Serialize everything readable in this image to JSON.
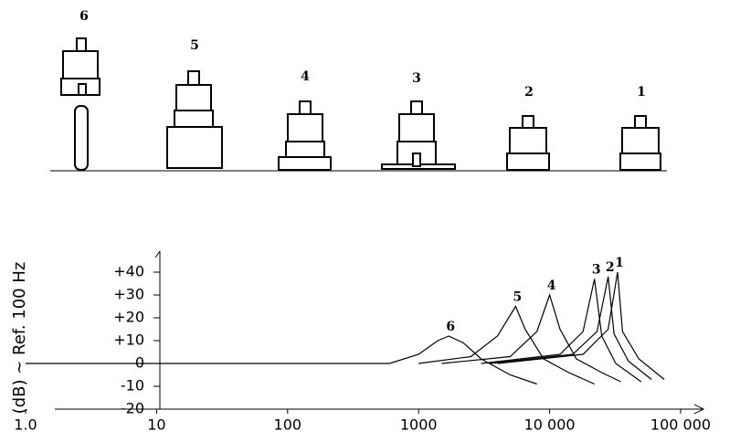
{
  "mounts": {
    "labels": [
      "6",
      "5",
      "4",
      "3",
      "2",
      "1"
    ]
  },
  "chart_data": {
    "type": "line",
    "y_label": "(dB) ~ Ref. 100 Hz",
    "xscale": "log",
    "xlim": [
      1,
      100000
    ],
    "ylim": [
      -20,
      45
    ],
    "xticks": [
      {
        "value": 1,
        "label": "1.0"
      },
      10,
      100,
      1000,
      {
        "value": 10000,
        "label": "10 000"
      },
      {
        "value": 100000,
        "label": "100 000"
      }
    ],
    "yticks": [
      {
        "value": 40,
        "label": "+40"
      },
      {
        "value": 30,
        "label": "+30"
      },
      {
        "value": 20,
        "label": "+20"
      },
      {
        "value": 10,
        "label": "+10"
      },
      0,
      -10,
      -20
    ],
    "color": "#000000",
    "series": [
      {
        "name": "6",
        "x": [
          1,
          600,
          1000,
          1400,
          1700,
          2200,
          3000,
          5000,
          8000
        ],
        "values": [
          0,
          0,
          4,
          10,
          12,
          9,
          2,
          -5,
          -9
        ]
      },
      {
        "name": "5",
        "x": [
          1000,
          2500,
          4000,
          5500,
          6500,
          9000,
          14000,
          22000
        ],
        "values": [
          0,
          3,
          12,
          25,
          15,
          2,
          -4,
          -9
        ]
      },
      {
        "name": "4",
        "x": [
          1500,
          5000,
          8000,
          10000,
          12000,
          16000,
          25000,
          35000
        ],
        "values": [
          0,
          3,
          14,
          30,
          15,
          2,
          -4,
          -8
        ]
      },
      {
        "name": "3",
        "x": [
          3000,
          12000,
          18000,
          22000,
          25000,
          32000,
          50000
        ],
        "values": [
          0,
          4,
          14,
          37,
          12,
          0,
          -8
        ]
      },
      {
        "name": "2",
        "x": [
          3500,
          15000,
          23000,
          28000,
          31000,
          40000,
          60000
        ],
        "values": [
          0,
          4,
          14,
          38,
          13,
          1,
          -7
        ]
      },
      {
        "name": "1",
        "x": [
          4000,
          18000,
          28000,
          33000,
          36000,
          48000,
          75000
        ],
        "values": [
          0,
          4,
          15,
          40,
          14,
          2,
          -7
        ]
      }
    ]
  }
}
